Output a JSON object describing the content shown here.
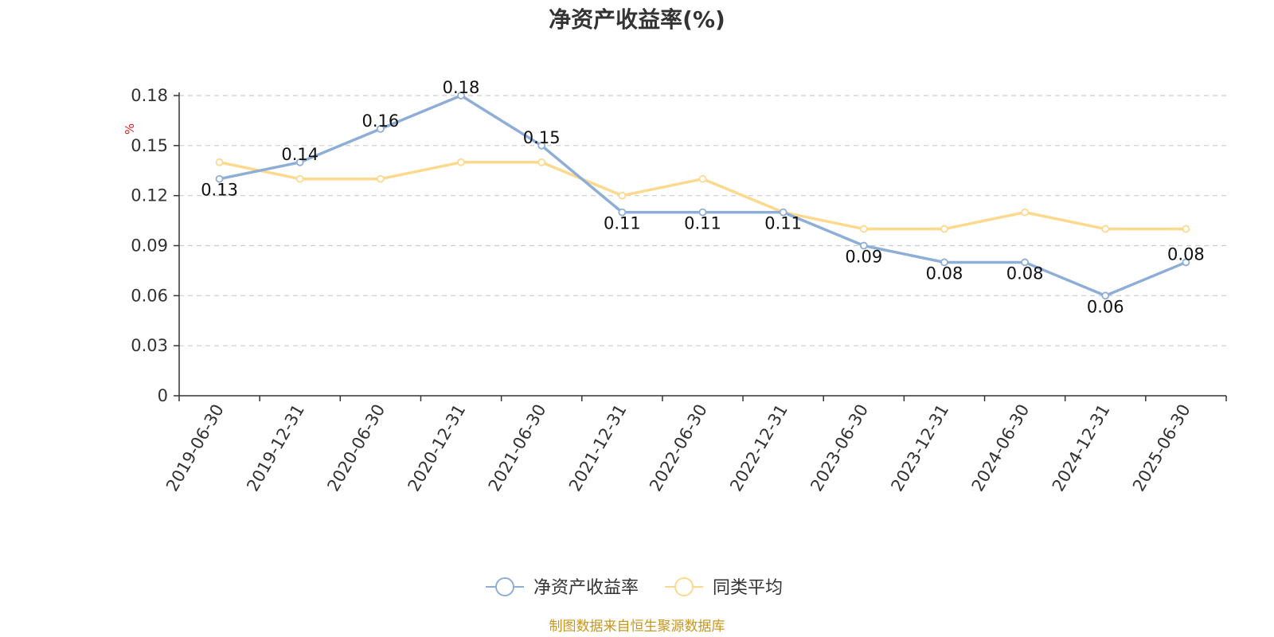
{
  "chart_data": {
    "type": "line",
    "title": "净资产收益率(%)",
    "y_unit": "%",
    "x": [
      "2019-06-30",
      "2019-12-31",
      "2020-06-30",
      "2020-12-31",
      "2021-06-30",
      "2021-12-31",
      "2022-06-30",
      "2022-12-31",
      "2023-06-30",
      "2023-12-31",
      "2024-06-30",
      "2024-12-31",
      "2025-06-30"
    ],
    "series": [
      {
        "name": "净资产收益率",
        "color": "#8eaed8",
        "values": [
          0.13,
          0.14,
          0.16,
          0.18,
          0.15,
          0.11,
          0.11,
          0.11,
          0.09,
          0.08,
          0.08,
          0.06,
          0.08
        ],
        "labels": [
          "0.13",
          "0.14",
          "0.16",
          "0.18",
          "0.15",
          "0.11",
          "0.11",
          "0.11",
          "0.09",
          "0.08",
          "0.08",
          "0.06",
          "0.08"
        ]
      },
      {
        "name": "同类平均",
        "color": "#fcd98e",
        "values": [
          0.14,
          0.13,
          0.13,
          0.14,
          0.14,
          0.12,
          0.13,
          0.11,
          0.1,
          0.1,
          0.11,
          0.1,
          0.1
        ]
      }
    ],
    "yticks": [
      "0",
      "0.03",
      "0.06",
      "0.09",
      "0.12",
      "0.15",
      "0.18"
    ],
    "ylim": [
      0,
      0.18
    ],
    "grid": true,
    "legend_position": "bottom-center"
  },
  "footer": {
    "source": "制图数据来自恒生聚源数据库"
  }
}
